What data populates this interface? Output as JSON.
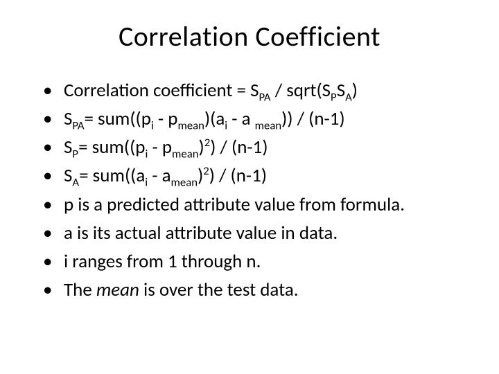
{
  "title": "Correlation Coefficient",
  "bullets": [
    {
      "html": "Correlation coefficient = S<sub>PA</sub> / sqrt(S<sub>P</sub>S<sub>A</sub>)"
    },
    {
      "html": "S<sub>PA</sub>= sum((p<sub>i</sub> - p<sub>mean</sub>)(a<sub>i</sub> - a <sub>mean</sub>)) / (n-1)"
    },
    {
      "html": "S<sub>P</sub>= sum((p<sub>i</sub> - p<sub>mean</sub>)<sup>2</sup>) / (n-1)"
    },
    {
      "html": "S<sub>A</sub>= sum((a<sub>i</sub> - a<sub>mean</sub>)<sup>2</sup>) / (n-1)"
    },
    {
      "html": "p is a predicted attribute value from formula."
    },
    {
      "html": "a is its actual attribute value in data."
    },
    {
      "html": "i ranges from 1 through n."
    },
    {
      "html": "The <span class=\"ital\">mean</span> is over the test data."
    }
  ],
  "colors": {
    "background": "#ffffff",
    "text": "#000000"
  },
  "typography": {
    "title_fontsize": 40,
    "body_fontsize": 27,
    "font_family": "Calibri"
  }
}
